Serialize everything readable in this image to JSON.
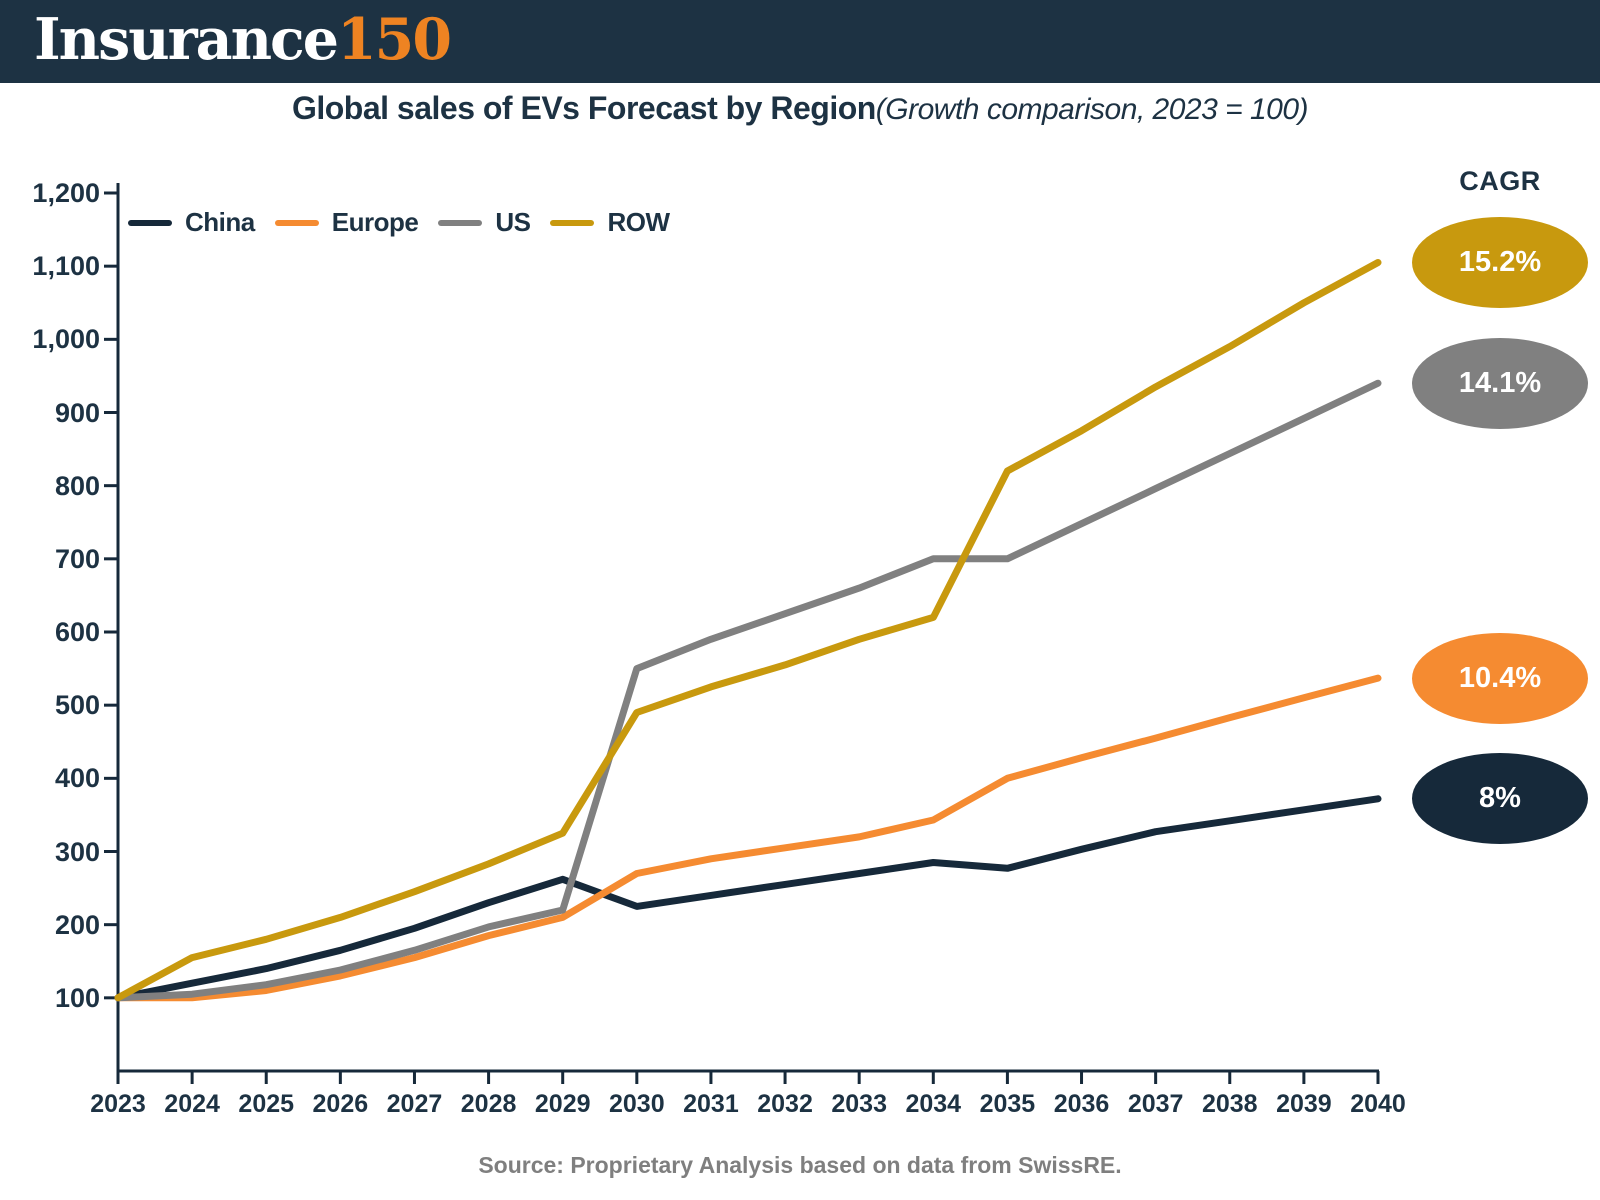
{
  "header": {
    "brand_main": "Insurance",
    "brand_accent": "150"
  },
  "title": {
    "main": "Global sales of EVs Forecast by Region",
    "subtitle": "(Growth comparison, 2023 = 100)"
  },
  "cagr_label": "CAGR",
  "source": "Source: Proprietary Analysis based on data from SwissRE.",
  "colors": {
    "header_bar": "#1d3243",
    "brand_accent": "#ee8322",
    "text_navy": "#1d3243",
    "source_gray": "#7f7f7f",
    "china": "#16293a",
    "europe": "#f58b31",
    "us": "#808080",
    "row": "#c8990e"
  },
  "chart_data": {
    "type": "line",
    "title": "Global sales of EVs Forecast by Region",
    "subtitle": "(Growth comparison, 2023 = 100)",
    "xlabel": "",
    "ylabel": "",
    "x": [
      2023,
      2024,
      2025,
      2026,
      2027,
      2028,
      2029,
      2030,
      2031,
      2032,
      2033,
      2034,
      2035,
      2036,
      2037,
      2038,
      2039,
      2040
    ],
    "series": [
      {
        "name": "China",
        "color": "#16293a",
        "cagr": "8%",
        "values": [
          100,
          120,
          140,
          165,
          195,
          230,
          262,
          225,
          240,
          255,
          270,
          285,
          277,
          303,
          327,
          342,
          357,
          372
        ]
      },
      {
        "name": "Europe",
        "color": "#f58b31",
        "cagr": "10.4%",
        "values": [
          100,
          100,
          110,
          130,
          155,
          185,
          210,
          270,
          290,
          305,
          320,
          343,
          400,
          428,
          455,
          483,
          510,
          537
        ]
      },
      {
        "name": "US",
        "color": "#808080",
        "cagr": "14.1%",
        "values": [
          100,
          105,
          118,
          138,
          165,
          197,
          220,
          550,
          590,
          625,
          660,
          700,
          700,
          748,
          796,
          844,
          892,
          940
        ]
      },
      {
        "name": "ROW",
        "color": "#c8990e",
        "cagr": "15.2%",
        "values": [
          100,
          155,
          180,
          210,
          245,
          283,
          325,
          490,
          525,
          555,
          590,
          620,
          820,
          875,
          935,
          990,
          1050,
          1105
        ]
      }
    ],
    "ylim": [
      0,
      1200
    ],
    "y_ticks": [
      100,
      200,
      300,
      400,
      500,
      600,
      700,
      800,
      900,
      1000,
      1100,
      1200
    ],
    "grid": false,
    "legend_position": "top-left",
    "annotation_column": "CAGR"
  }
}
